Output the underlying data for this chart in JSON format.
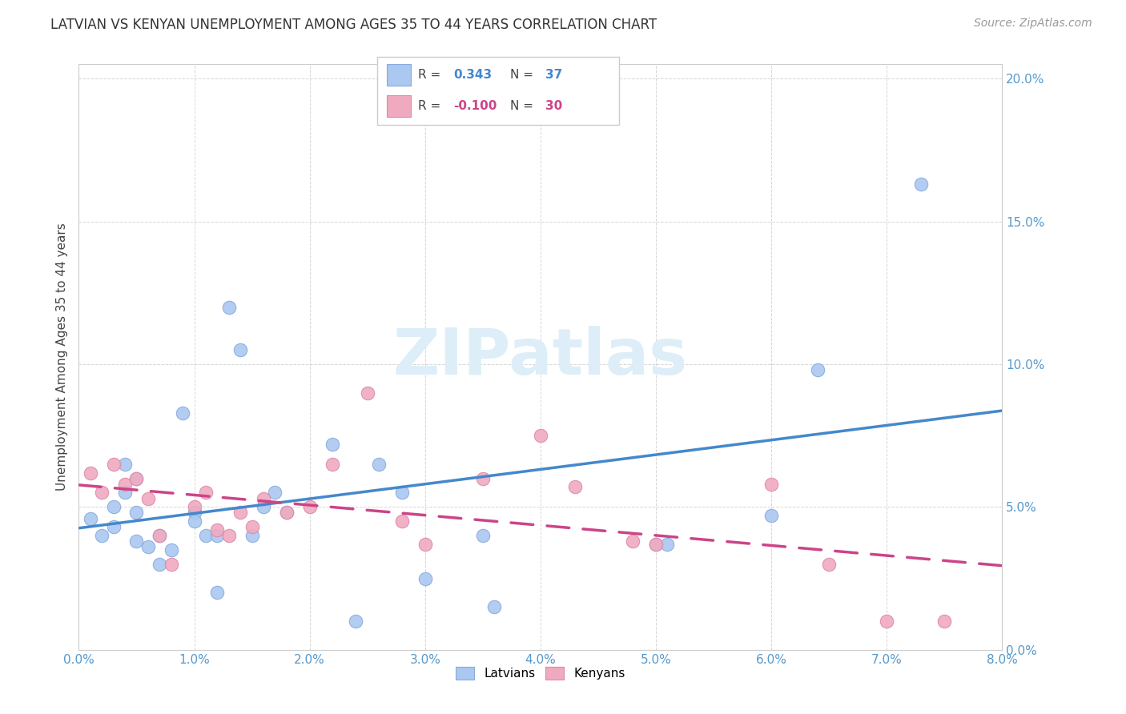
{
  "title": "LATVIAN VS KENYAN UNEMPLOYMENT AMONG AGES 35 TO 44 YEARS CORRELATION CHART",
  "source": "Source: ZipAtlas.com",
  "xlim": [
    0.0,
    0.08
  ],
  "ylim": [
    0.0,
    0.205
  ],
  "latvians_x": [
    0.001,
    0.002,
    0.003,
    0.003,
    0.004,
    0.004,
    0.005,
    0.005,
    0.005,
    0.006,
    0.007,
    0.007,
    0.008,
    0.009,
    0.01,
    0.01,
    0.011,
    0.012,
    0.012,
    0.013,
    0.014,
    0.015,
    0.016,
    0.017,
    0.018,
    0.022,
    0.024,
    0.026,
    0.028,
    0.03,
    0.035,
    0.036,
    0.05,
    0.051,
    0.06,
    0.064,
    0.073
  ],
  "latvians_y": [
    0.046,
    0.04,
    0.05,
    0.043,
    0.065,
    0.055,
    0.048,
    0.06,
    0.038,
    0.036,
    0.04,
    0.03,
    0.035,
    0.083,
    0.048,
    0.045,
    0.04,
    0.04,
    0.02,
    0.12,
    0.105,
    0.04,
    0.05,
    0.055,
    0.048,
    0.072,
    0.01,
    0.065,
    0.055,
    0.025,
    0.04,
    0.015,
    0.037,
    0.037,
    0.047,
    0.098,
    0.163
  ],
  "kenyans_x": [
    0.001,
    0.002,
    0.003,
    0.004,
    0.005,
    0.006,
    0.007,
    0.008,
    0.01,
    0.011,
    0.012,
    0.013,
    0.014,
    0.015,
    0.016,
    0.018,
    0.02,
    0.022,
    0.025,
    0.028,
    0.03,
    0.035,
    0.04,
    0.043,
    0.048,
    0.05,
    0.06,
    0.065,
    0.07,
    0.075
  ],
  "kenyans_y": [
    0.062,
    0.055,
    0.065,
    0.058,
    0.06,
    0.053,
    0.04,
    0.03,
    0.05,
    0.055,
    0.042,
    0.04,
    0.048,
    0.043,
    0.053,
    0.048,
    0.05,
    0.065,
    0.09,
    0.045,
    0.037,
    0.06,
    0.075,
    0.057,
    0.038,
    0.037,
    0.058,
    0.03,
    0.01,
    0.01
  ],
  "latvian_R": 0.343,
  "latvian_N": 37,
  "kenyan_R": -0.1,
  "kenyan_N": 30,
  "latvian_scatter_color": "#aac8f0",
  "kenyan_scatter_color": "#f0aac0",
  "latvian_scatter_edge": "#88aadd",
  "kenyan_scatter_edge": "#dd88aa",
  "latvian_line_color": "#4488cc",
  "kenyan_line_color": "#cc4488",
  "watermark_text": "ZIPatlas",
  "watermark_color": "#ddeef8",
  "grid_color": "#cccccc",
  "tick_color": "#5599cc",
  "ylabel": "Unemployment Among Ages 35 to 44 years",
  "bg_color": "white"
}
